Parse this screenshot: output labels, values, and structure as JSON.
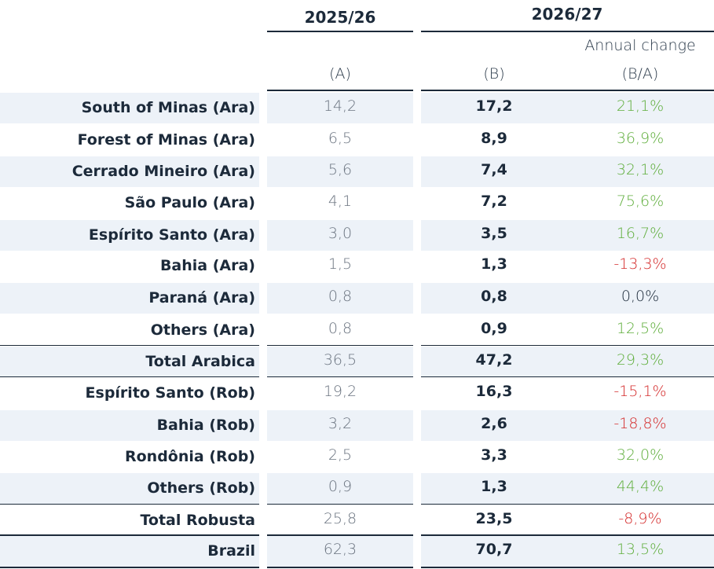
{
  "header": {
    "year_a": "2025/26",
    "year_b": "2026/27",
    "annual_change": "Annual change",
    "col_a": "(A)",
    "col_b": "(B)",
    "col_c": "(B/A)"
  },
  "rows": [
    {
      "label": "South of Minas (Ara)",
      "a": "14,2",
      "b": "17,2",
      "c": "21,1%",
      "sign": "pos"
    },
    {
      "label": "Forest of Minas (Ara)",
      "a": "6,5",
      "b": "8,9",
      "c": "36,9%",
      "sign": "pos"
    },
    {
      "label": "Cerrado Mineiro (Ara)",
      "a": "5,6",
      "b": "7,4",
      "c": "32,1%",
      "sign": "pos"
    },
    {
      "label": "São Paulo (Ara)",
      "a": "4,1",
      "b": "7,2",
      "c": "75,6%",
      "sign": "pos"
    },
    {
      "label": "Espírito Santo (Ara)",
      "a": "3,0",
      "b": "3,5",
      "c": "16,7%",
      "sign": "pos"
    },
    {
      "label": "Bahia (Ara)",
      "a": "1,5",
      "b": "1,3",
      "c": "-13,3%",
      "sign": "neg"
    },
    {
      "label": "Paraná (Ara)",
      "a": "0,8",
      "b": "0,8",
      "c": "0,0%",
      "sign": "zero"
    },
    {
      "label": "Others (Ara)",
      "a": "0,8",
      "b": "0,9",
      "c": "12,5%",
      "sign": "pos"
    },
    {
      "label": "Total Arabica",
      "a": "36,5",
      "b": "47,2",
      "c": "29,3%",
      "sign": "pos"
    },
    {
      "label": "Espírito Santo (Rob)",
      "a": "19,2",
      "b": "16,3",
      "c": "-15,1%",
      "sign": "neg"
    },
    {
      "label": "Bahia (Rob)",
      "a": "3,2",
      "b": "2,6",
      "c": "-18,8%",
      "sign": "neg"
    },
    {
      "label": "Rondônia (Rob)",
      "a": "2,5",
      "b": "3,3",
      "c": "32,0%",
      "sign": "pos"
    },
    {
      "label": "Others (Rob)",
      "a": "0,9",
      "b": "1,3",
      "c": "44,4%",
      "sign": "pos"
    },
    {
      "label": "Total Robusta",
      "a": "25,8",
      "b": "23,5",
      "c": "-8,9%",
      "sign": "neg"
    },
    {
      "label": "Brazil",
      "a": "62,3",
      "b": "70,7",
      "c": "13,5%",
      "sign": "pos"
    }
  ]
}
